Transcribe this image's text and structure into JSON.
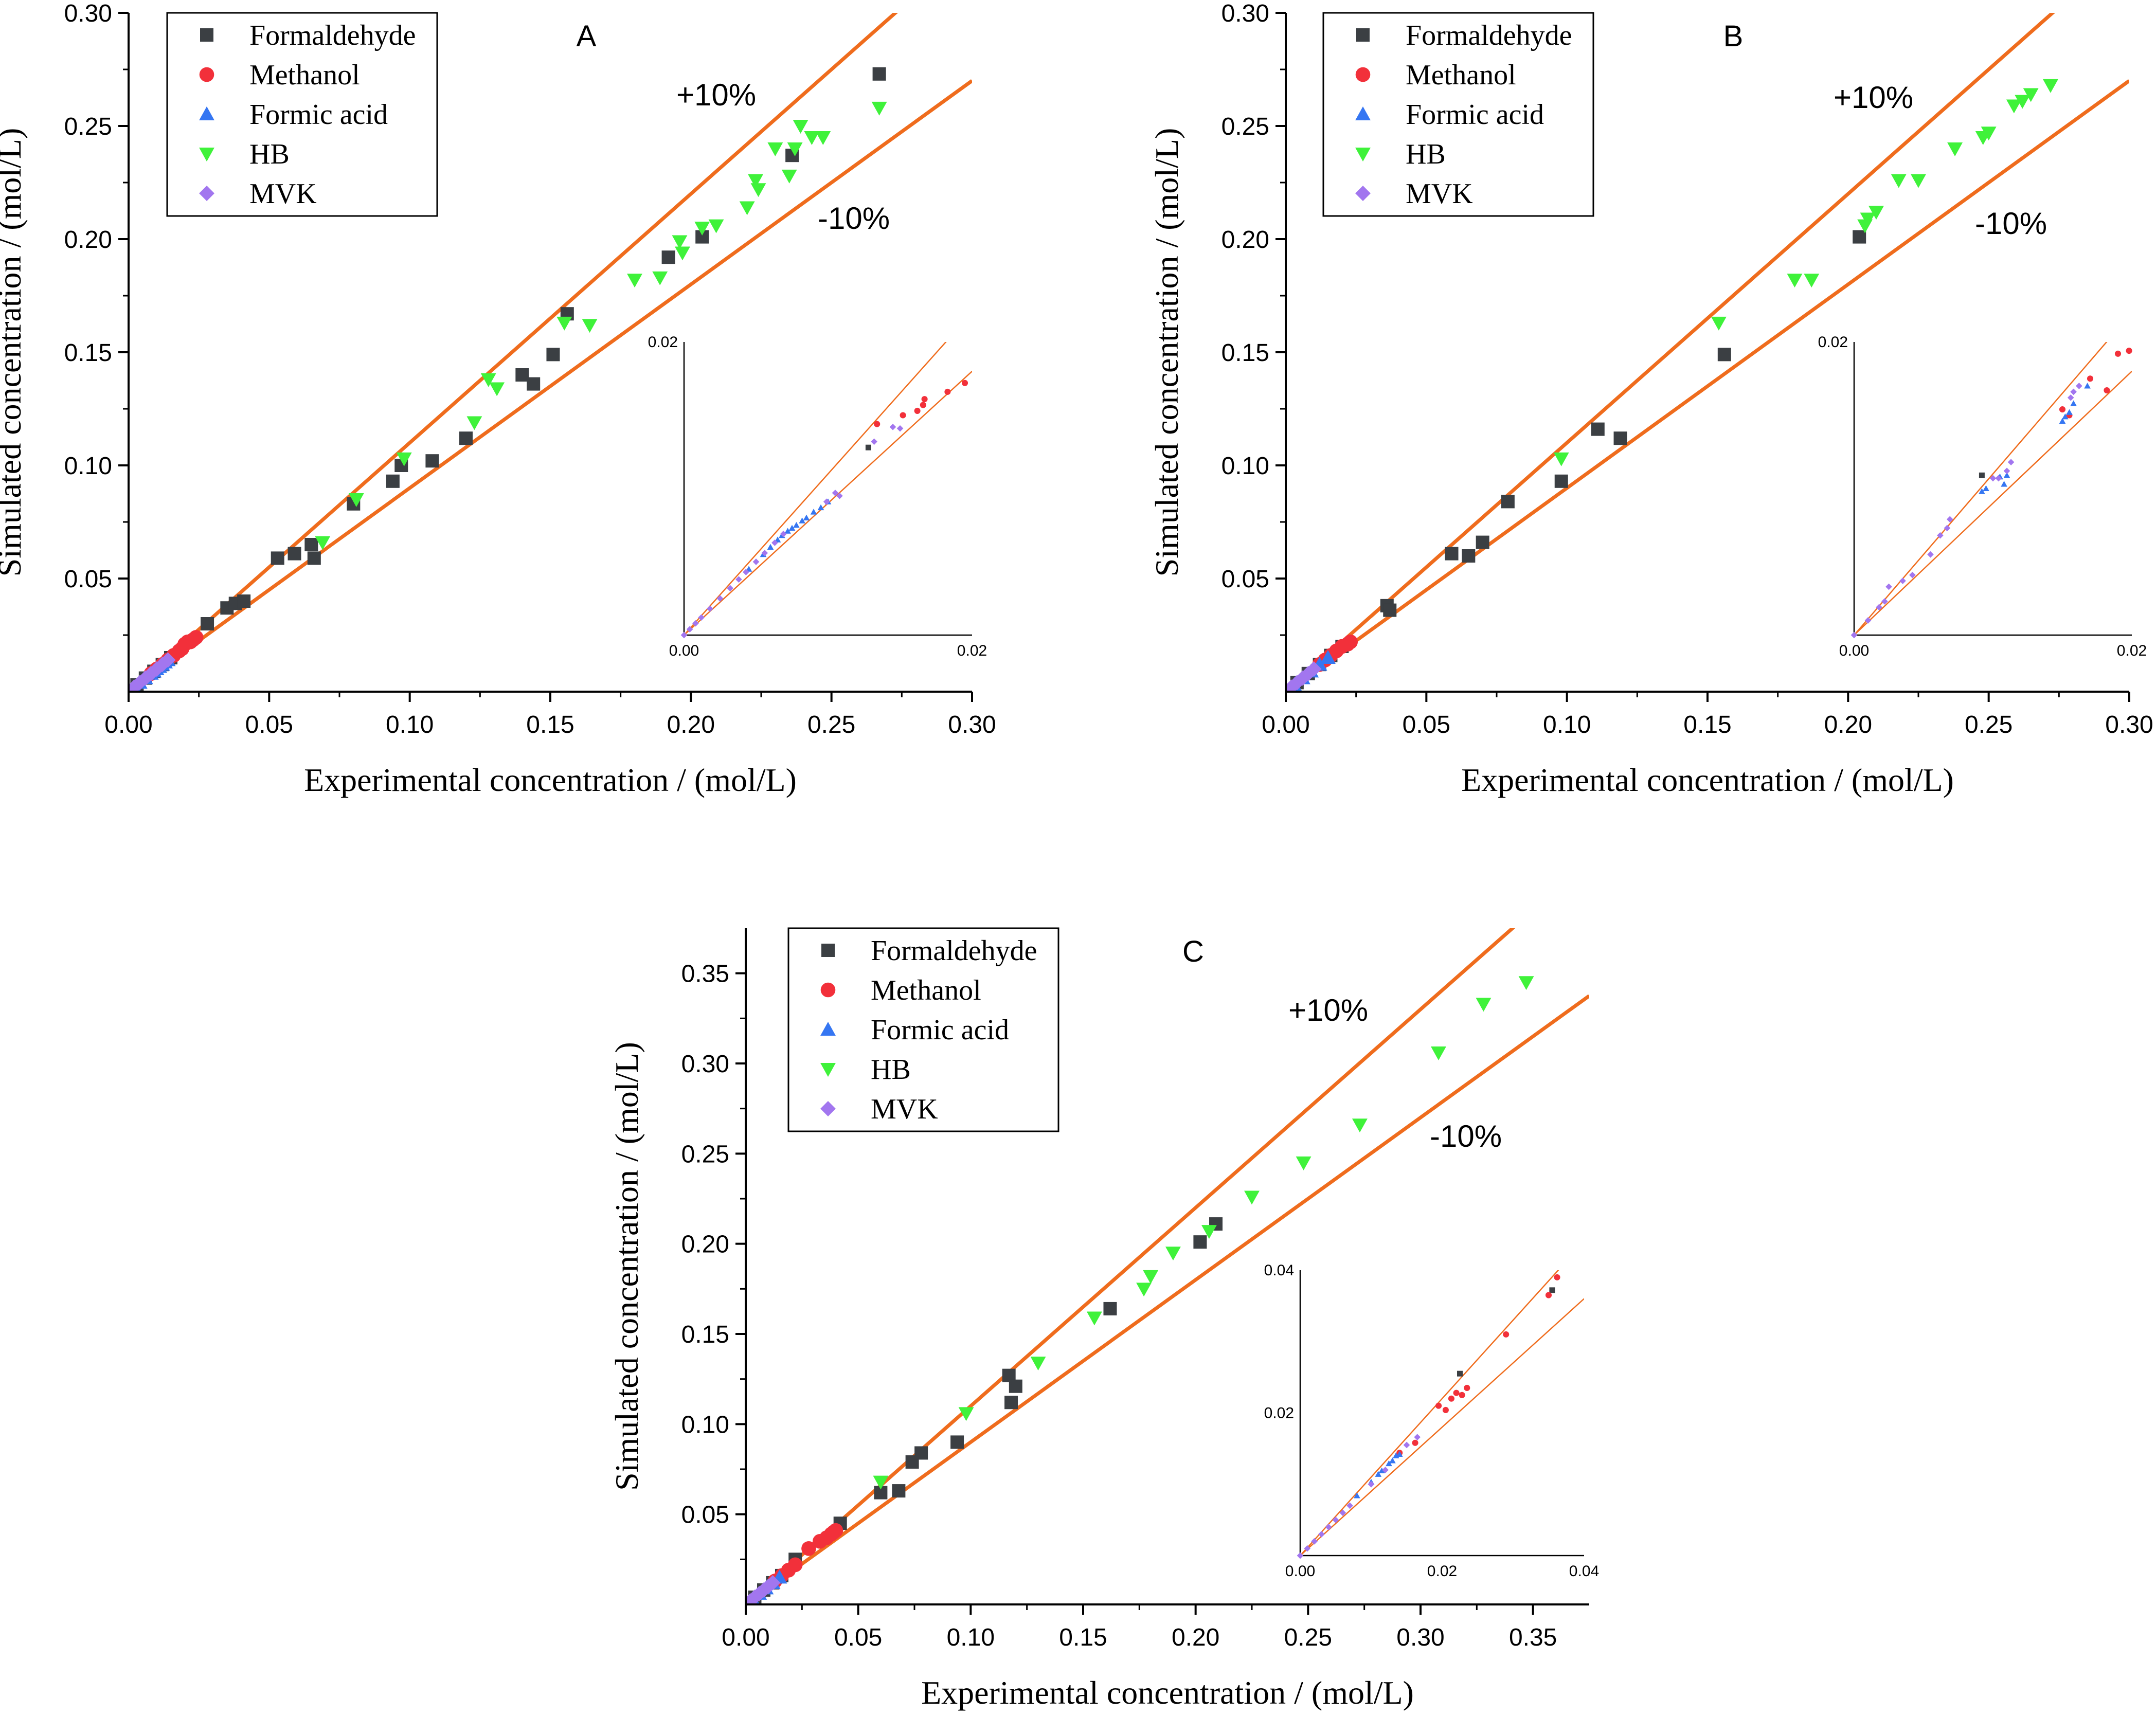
{
  "figure": {
    "line_color": "#ef6c1d",
    "series_styles": {
      "Formaldehyde": {
        "marker": "square",
        "color": "#3b3f43"
      },
      "Methanol": {
        "marker": "circle",
        "color": "#f2303a"
      },
      "Formic acid": {
        "marker": "triangle-up",
        "color": "#3576f2"
      },
      "HB": {
        "marker": "triangle-down",
        "color": "#3ff23a"
      },
      "MVK": {
        "marker": "diamond",
        "color": "#a276ef"
      }
    }
  },
  "chart_data": [
    {
      "type": "scatter",
      "panel": "A",
      "xlabel": "Experimental concentration / (mol/L)",
      "ylabel": "Simulated concentration / (mol/L)",
      "xlim": [
        0,
        0.3
      ],
      "ylim": [
        0,
        0.3
      ],
      "xticks": [
        0.0,
        0.05,
        0.1,
        0.15,
        0.2,
        0.25,
        0.3
      ],
      "xtick_labels": [
        "0.00",
        "0.05",
        "0.10",
        "0.15",
        "0.20",
        "0.25",
        "0.30"
      ],
      "yticks": [
        0.05,
        0.1,
        0.15,
        0.2,
        0.25,
        0.3
      ],
      "ytick_labels": [
        "0.05",
        "0.10",
        "0.15",
        "0.20",
        "0.25",
        "0.30"
      ],
      "legend": [
        "Formaldehyde",
        "Methanol",
        "Formic acid",
        "HB",
        "MVK"
      ],
      "annotations": {
        "plus": "+10%",
        "minus": "-10%"
      },
      "reference_lines": {
        "plus_slope": 1.1,
        "minus_slope": 0.9
      },
      "series": [
        {
          "name": "Formaldehyde",
          "x": [
            0.003,
            0.006,
            0.009,
            0.012,
            0.015,
            0.028,
            0.035,
            0.038,
            0.041,
            0.053,
            0.059,
            0.065,
            0.066,
            0.08,
            0.094,
            0.097,
            0.108,
            0.12,
            0.14,
            0.144,
            0.151,
            0.156,
            0.192,
            0.204,
            0.236,
            0.267
          ],
          "y": [
            0.003,
            0.006,
            0.009,
            0.012,
            0.015,
            0.03,
            0.037,
            0.039,
            0.04,
            0.059,
            0.061,
            0.065,
            0.059,
            0.083,
            0.093,
            0.1,
            0.102,
            0.112,
            0.14,
            0.136,
            0.149,
            0.167,
            0.192,
            0.201,
            0.237,
            0.273
          ]
        },
        {
          "name": "Methanol",
          "x": [
            0.008,
            0.01,
            0.012,
            0.014,
            0.016,
            0.018,
            0.019,
            0.02,
            0.021,
            0.022,
            0.023,
            0.024
          ],
          "y": [
            0.008,
            0.01,
            0.012,
            0.014,
            0.016,
            0.018,
            0.019,
            0.021,
            0.022,
            0.022,
            0.023,
            0.024
          ]
        },
        {
          "name": "Formic acid",
          "x": [
            0.002,
            0.004,
            0.006,
            0.008,
            0.009,
            0.01,
            0.011,
            0.012,
            0.013,
            0.014
          ],
          "y": [
            0.002,
            0.004,
            0.006,
            0.008,
            0.009,
            0.01,
            0.011,
            0.012,
            0.013,
            0.014
          ]
        },
        {
          "name": "HB",
          "x": [
            0.069,
            0.081,
            0.098,
            0.123,
            0.128,
            0.131,
            0.155,
            0.164,
            0.18,
            0.189,
            0.196,
            0.197,
            0.204,
            0.209,
            0.22,
            0.223,
            0.224,
            0.23,
            0.235,
            0.237,
            0.239,
            0.243,
            0.247,
            0.267
          ],
          "y": [
            0.066,
            0.085,
            0.103,
            0.119,
            0.138,
            0.134,
            0.163,
            0.162,
            0.182,
            0.183,
            0.199,
            0.194,
            0.205,
            0.206,
            0.214,
            0.226,
            0.222,
            0.24,
            0.228,
            0.24,
            0.25,
            0.245,
            0.245,
            0.258
          ]
        },
        {
          "name": "MVK",
          "x": [
            0.0,
            0.002,
            0.004,
            0.006,
            0.008,
            0.01,
            0.012,
            0.014
          ],
          "y": [
            0.0,
            0.002,
            0.004,
            0.006,
            0.008,
            0.01,
            0.012,
            0.014
          ]
        }
      ],
      "inset": {
        "xlim": [
          0,
          0.02
        ],
        "ylim": [
          0,
          0.02
        ],
        "tick_labels": {
          "x0": "0.00",
          "x1": "0.02",
          "y0": "0.00",
          "y1": "0.02"
        },
        "series": [
          {
            "name": "Formaldehyde",
            "x": [
              0.0128
            ],
            "y": [
              0.0128
            ]
          },
          {
            "name": "Methanol",
            "x": [
              0.0134,
              0.0152,
              0.0162,
              0.0166,
              0.0167,
              0.0183,
              0.0195
            ],
            "y": [
              0.0144,
              0.015,
              0.0153,
              0.0157,
              0.0161,
              0.0166,
              0.0172
            ]
          },
          {
            "name": "Formic acid",
            "x": [
              0.0045,
              0.0055,
              0.006,
              0.0065,
              0.0068,
              0.0072,
              0.0075,
              0.0078,
              0.0082,
              0.0085,
              0.009,
              0.0095,
              0.01
            ],
            "y": [
              0.0045,
              0.0055,
              0.006,
              0.0065,
              0.0068,
              0.0071,
              0.0073,
              0.0075,
              0.0078,
              0.008,
              0.0084,
              0.0087,
              0.0091
            ]
          },
          {
            "name": "MVK",
            "x": [
              0.0,
              0.0004,
              0.0008,
              0.0012,
              0.0018,
              0.0025,
              0.0032,
              0.0038,
              0.0043,
              0.005,
              0.0056,
              0.0063,
              0.0069,
              0.0099,
              0.0105,
              0.0108,
              0.0132,
              0.0145,
              0.015
            ],
            "y": [
              0.0,
              0.0004,
              0.0008,
              0.0012,
              0.0018,
              0.0025,
              0.0032,
              0.0038,
              0.0043,
              0.005,
              0.0056,
              0.0063,
              0.0069,
              0.0091,
              0.0097,
              0.0095,
              0.0132,
              0.0142,
              0.0141
            ]
          }
        ]
      }
    },
    {
      "type": "scatter",
      "panel": "B",
      "xlabel": "Experimental concentration / (mol/L)",
      "ylabel": "Simulated concentration / (mol/L)",
      "xlim": [
        0,
        0.3
      ],
      "ylim": [
        0,
        0.3
      ],
      "xticks": [
        0.0,
        0.05,
        0.1,
        0.15,
        0.2,
        0.25,
        0.3
      ],
      "xtick_labels": [
        "0.00",
        "0.05",
        "0.10",
        "0.15",
        "0.20",
        "0.25",
        "0.30"
      ],
      "yticks": [
        0.05,
        0.1,
        0.15,
        0.2,
        0.25,
        0.3
      ],
      "ytick_labels": [
        "0.05",
        "0.10",
        "0.15",
        "0.20",
        "0.25",
        "0.30"
      ],
      "legend": [
        "Formaldehyde",
        "Methanol",
        "Formic acid",
        "HB",
        "MVK"
      ],
      "annotations": {
        "plus": "+10%",
        "minus": "-10%"
      },
      "reference_lines": {
        "plus_slope": 1.1,
        "minus_slope": 0.9
      },
      "series": [
        {
          "name": "Formaldehyde",
          "x": [
            0.004,
            0.008,
            0.012,
            0.016,
            0.02,
            0.036,
            0.037,
            0.059,
            0.065,
            0.07,
            0.079,
            0.098,
            0.111,
            0.119,
            0.156,
            0.204
          ],
          "y": [
            0.004,
            0.008,
            0.012,
            0.016,
            0.02,
            0.038,
            0.036,
            0.061,
            0.06,
            0.066,
            0.084,
            0.093,
            0.116,
            0.112,
            0.149,
            0.201
          ]
        },
        {
          "name": "Methanol",
          "x": [
            0.012,
            0.014,
            0.016,
            0.018,
            0.02,
            0.022,
            0.023
          ],
          "y": [
            0.012,
            0.014,
            0.016,
            0.018,
            0.02,
            0.021,
            0.022
          ]
        },
        {
          "name": "Formic acid",
          "x": [
            0.003,
            0.006,
            0.009,
            0.012,
            0.015
          ],
          "y": [
            0.003,
            0.006,
            0.009,
            0.012,
            0.015
          ]
        },
        {
          "name": "HB",
          "x": [
            0.098,
            0.154,
            0.181,
            0.187,
            0.206,
            0.207,
            0.21,
            0.218,
            0.225,
            0.238,
            0.248,
            0.25,
            0.259,
            0.262,
            0.265,
            0.272
          ],
          "y": [
            0.103,
            0.163,
            0.182,
            0.182,
            0.206,
            0.209,
            0.212,
            0.226,
            0.226,
            0.24,
            0.245,
            0.247,
            0.259,
            0.261,
            0.264,
            0.268
          ]
        },
        {
          "name": "MVK",
          "x": [
            0.0,
            0.002,
            0.004,
            0.006,
            0.008,
            0.01
          ],
          "y": [
            0.0,
            0.002,
            0.004,
            0.006,
            0.008,
            0.01
          ]
        }
      ],
      "inset": {
        "xlim": [
          0,
          0.02
        ],
        "ylim": [
          0,
          0.02
        ],
        "tick_labels": {
          "x0": "0.00",
          "x1": "0.02",
          "y0": "0.00",
          "y1": "0.02"
        },
        "series": [
          {
            "name": "Formaldehyde",
            "x": [
              0.0092
            ],
            "y": [
              0.0109
            ]
          },
          {
            "name": "Methanol",
            "x": [
              0.015,
              0.0155,
              0.017,
              0.0182,
              0.019,
              0.0198
            ],
            "y": [
              0.0154,
              0.015,
              0.0175,
              0.0167,
              0.0192,
              0.0194
            ]
          },
          {
            "name": "Formic acid",
            "x": [
              0.0092,
              0.0095,
              0.0105,
              0.0108,
              0.011,
              0.015,
              0.0152,
              0.0155,
              0.0158,
              0.0168
            ],
            "y": [
              0.0098,
              0.01,
              0.0108,
              0.0103,
              0.0109,
              0.0146,
              0.0149,
              0.0152,
              0.0158,
              0.017
            ]
          },
          {
            "name": "MVK",
            "x": [
              0.0,
              0.001,
              0.0018,
              0.0022,
              0.0025,
              0.0035,
              0.0042,
              0.0055,
              0.0062,
              0.0067,
              0.0069,
              0.01,
              0.0104,
              0.011,
              0.0113,
              0.0156,
              0.0158,
              0.0162
            ],
            "y": [
              0.0,
              0.001,
              0.0019,
              0.0023,
              0.0033,
              0.0037,
              0.0041,
              0.0055,
              0.0068,
              0.0073,
              0.0079,
              0.0107,
              0.0107,
              0.0112,
              0.0118,
              0.0162,
              0.0166,
              0.017
            ]
          }
        ]
      }
    },
    {
      "type": "scatter",
      "panel": "C",
      "xlabel": "Experimental concentration / (mol/L)",
      "ylabel": "Simulated concentration / (mol/L)",
      "xlim": [
        0,
        0.375
      ],
      "ylim": [
        0,
        0.375
      ],
      "xticks": [
        0.0,
        0.05,
        0.1,
        0.15,
        0.2,
        0.25,
        0.3,
        0.35
      ],
      "xtick_labels": [
        "0.00",
        "0.05",
        "0.10",
        "0.15",
        "0.20",
        "0.25",
        "0.30",
        "0.35"
      ],
      "yticks": [
        0.05,
        0.1,
        0.15,
        0.2,
        0.25,
        0.3,
        0.35
      ],
      "ytick_labels": [
        "0.05",
        "0.10",
        "0.15",
        "0.20",
        "0.25",
        "0.30",
        "0.35"
      ],
      "legend": [
        "Formaldehyde",
        "Methanol",
        "Formic acid",
        "HB",
        "MVK"
      ],
      "annotations": {
        "plus": "+10%",
        "minus": "-10%"
      },
      "reference_lines": {
        "plus_slope": 1.1,
        "minus_slope": 0.9
      },
      "series": [
        {
          "name": "Formaldehyde",
          "x": [
            0.004,
            0.008,
            0.012,
            0.016,
            0.022,
            0.042,
            0.06,
            0.068,
            0.074,
            0.078,
            0.094,
            0.117,
            0.118,
            0.12,
            0.162,
            0.202,
            0.209
          ],
          "y": [
            0.004,
            0.008,
            0.012,
            0.016,
            0.025,
            0.045,
            0.062,
            0.063,
            0.079,
            0.084,
            0.09,
            0.127,
            0.112,
            0.121,
            0.164,
            0.201,
            0.211
          ]
        },
        {
          "name": "Methanol",
          "x": [
            0.013,
            0.016,
            0.019,
            0.022,
            0.028,
            0.033,
            0.036,
            0.038,
            0.039,
            0.04
          ],
          "y": [
            0.013,
            0.016,
            0.019,
            0.022,
            0.031,
            0.035,
            0.037,
            0.039,
            0.04,
            0.041
          ]
        },
        {
          "name": "Formic acid",
          "x": [
            0.003,
            0.006,
            0.009,
            0.012,
            0.015
          ],
          "y": [
            0.003,
            0.006,
            0.009,
            0.012,
            0.015
          ]
        },
        {
          "name": "HB",
          "x": [
            0.06,
            0.098,
            0.13,
            0.155,
            0.177,
            0.18,
            0.19,
            0.206,
            0.225,
            0.248,
            0.273,
            0.308,
            0.328,
            0.347
          ],
          "y": [
            0.068,
            0.106,
            0.134,
            0.159,
            0.175,
            0.182,
            0.195,
            0.207,
            0.226,
            0.245,
            0.266,
            0.306,
            0.333,
            0.345
          ]
        },
        {
          "name": "MVK",
          "x": [
            0.0,
            0.002,
            0.004,
            0.006,
            0.008,
            0.01,
            0.012
          ],
          "y": [
            0.0,
            0.002,
            0.004,
            0.006,
            0.008,
            0.01,
            0.012
          ]
        }
      ],
      "inset": {
        "xlim": [
          0,
          0.04
        ],
        "ylim": [
          0,
          0.04
        ],
        "tick_labels": {
          "x0": "0.00",
          "x1": "0.02",
          "x2": "0.04",
          "y1": "0.02",
          "y2": "0.04"
        },
        "series": [
          {
            "name": "Formaldehyde",
            "x": [
              0.0225,
              0.0355
            ],
            "y": [
              0.0255,
              0.0372
            ]
          },
          {
            "name": "Methanol",
            "x": [
              0.014,
              0.0162,
              0.0195,
              0.0205,
              0.0213,
              0.022,
              0.0228,
              0.0235,
              0.029,
              0.035,
              0.0362
            ],
            "y": [
              0.0144,
              0.0158,
              0.021,
              0.0204,
              0.022,
              0.0228,
              0.0225,
              0.0235,
              0.031,
              0.0365,
              0.039
            ]
          },
          {
            "name": "Formic acid",
            "x": [
              0.008,
              0.01,
              0.011,
              0.0115,
              0.0125,
              0.013,
              0.0135,
              0.014
            ],
            "y": [
              0.0084,
              0.0103,
              0.0114,
              0.0119,
              0.0129,
              0.0133,
              0.014,
              0.0142
            ]
          },
          {
            "name": "MVK",
            "x": [
              0.0,
              0.001,
              0.002,
              0.003,
              0.004,
              0.005,
              0.006,
              0.007,
              0.01,
              0.012,
              0.015,
              0.0165
            ],
            "y": [
              0.0,
              0.001,
              0.002,
              0.003,
              0.004,
              0.005,
              0.006,
              0.007,
              0.01,
              0.012,
              0.0155,
              0.0166
            ]
          }
        ]
      }
    }
  ]
}
